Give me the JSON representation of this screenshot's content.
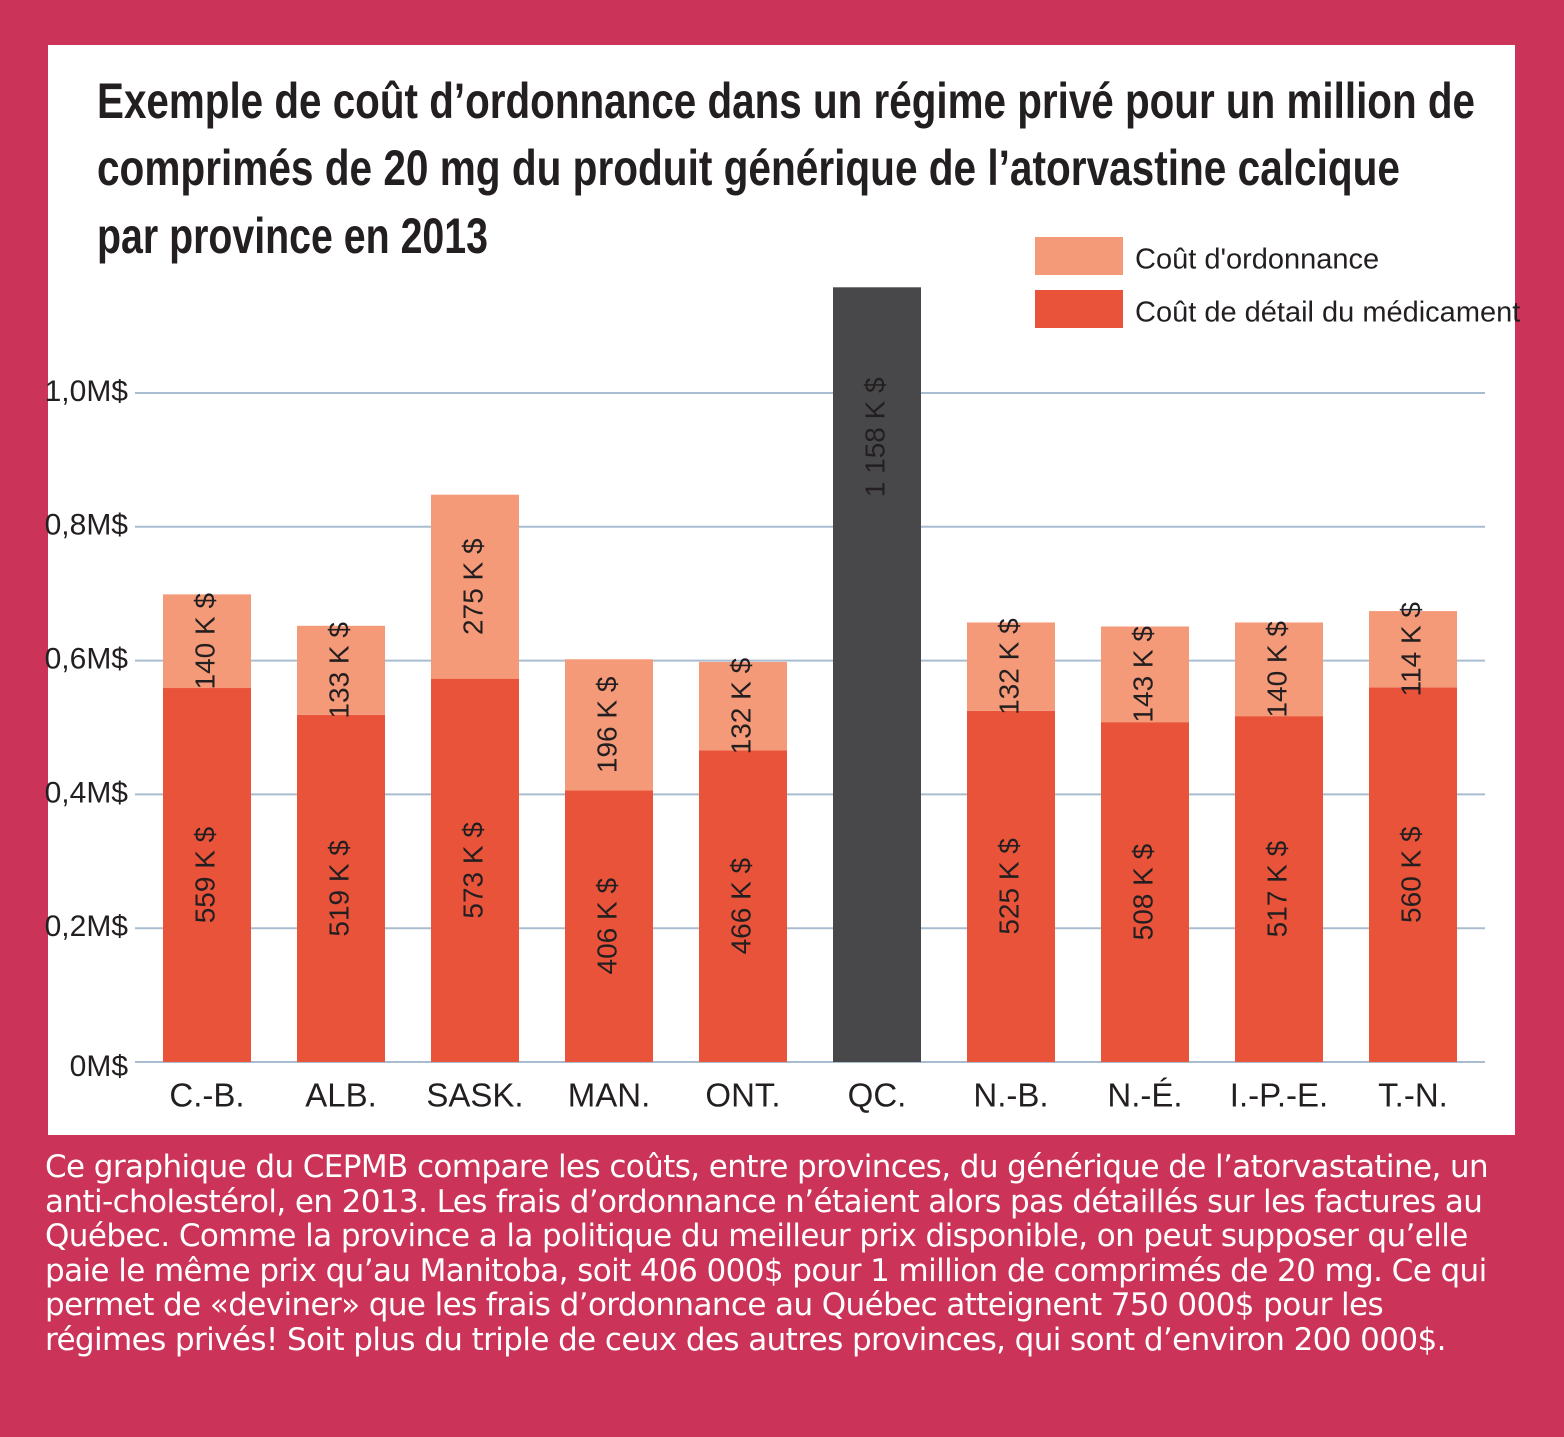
{
  "chart_data": {
    "type": "stacked_bar",
    "title": [
      "Exemple de coût d’ordonnance dans un régime privé pour un million de",
      "comprimés de 20 mg du produit générique de l’atorvastine calcique",
      "par province en 2013"
    ],
    "categories": [
      "C.-B.",
      "ALB.",
      "SASK.",
      "MAN.",
      "ONT.",
      "QC.",
      "N.-B.",
      "N.-É.",
      "I.-P.-E.",
      "T.-N."
    ],
    "series": [
      {
        "name": "Coût de détail du médicament",
        "color": "#e8533a",
        "values": [
          0.559,
          0.519,
          0.573,
          0.406,
          0.466,
          null,
          0.525,
          0.508,
          0.517,
          0.56
        ],
        "value_labels": [
          "559 K $",
          "519 K $",
          "573 K $",
          "406 K $",
          "466 K $",
          null,
          "525 K $",
          "508 K $",
          "517 K $",
          "560 K $"
        ]
      },
      {
        "name": "Coût d'ordonnance",
        "color": "#f49a78",
        "values": [
          0.14,
          0.133,
          0.275,
          0.196,
          0.132,
          null,
          0.132,
          0.143,
          0.14,
          0.114
        ],
        "value_labels": [
          "140 K $",
          "133 K $",
          "275 K $",
          "196 K $",
          "132 K $",
          null,
          "132 K $",
          "143 K $",
          "140 K $",
          "114 K $"
        ]
      },
      {
        "color": "#48484a",
        "values": [
          null,
          null,
          null,
          null,
          null,
          1.158,
          null,
          null,
          null,
          null
        ],
        "value_labels": [
          null,
          null,
          null,
          null,
          null,
          "1 158 K $",
          null,
          null,
          null,
          null
        ]
      }
    ],
    "ylim": [
      0,
      1.2
    ],
    "yticks": [
      {
        "value": 0,
        "label": "0M$"
      },
      {
        "value": 0.2,
        "label": "0,2M$"
      },
      {
        "value": 0.4,
        "label": "0,4M$"
      },
      {
        "value": 0.6,
        "label": "0,6M$"
      },
      {
        "value": 0.8,
        "label": "0,8M$"
      },
      {
        "value": 1.0,
        "label": "1,0M$"
      }
    ],
    "grid": true,
    "caption": "Ce graphique du CEPMB compare les coûts, entre provinces, du générique de l’atorvastatine, un anti-cholestérol, en 2013. Les frais d’ordonnance n’étaient alors pas détaillés sur les factures au Québec. Comme la province a la politique du meilleur prix disponible, on peut supposer qu’elle paie le même prix qu’au Manitoba, soit 406 000$ pour 1 million de comprimés de 20 mg. Ce qui permet de «deviner» que les frais d’ordonnance au Québec atteignent 750 000$ pour les régimes privés! Soit plus du triple de ceux des autres provinces, qui sont d’environ 200 000$."
  }
}
